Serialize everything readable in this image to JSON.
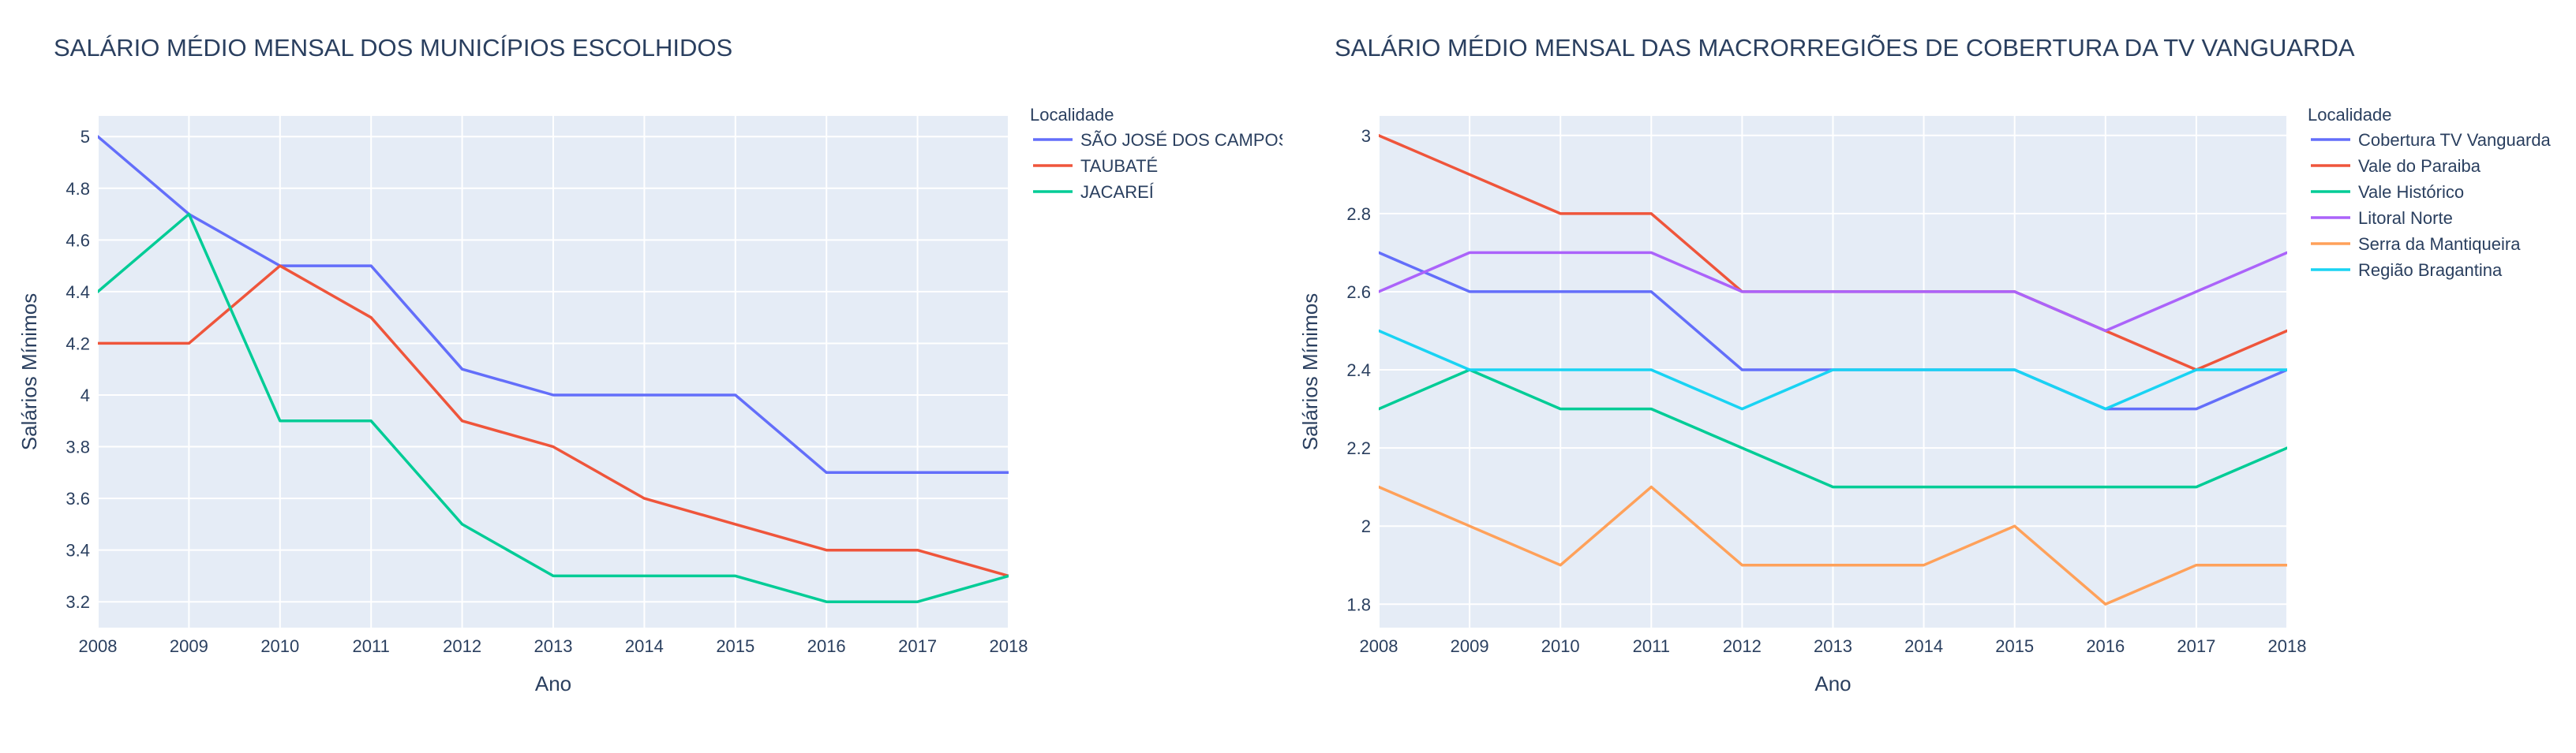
{
  "chart_data": [
    {
      "type": "line",
      "title": "SALÁRIO MÉDIO MENSAL DOS MUNICÍPIOS ESCOLHIDOS",
      "xlabel": "Ano",
      "ylabel": "Salários Mínimos",
      "legend_title": "Localidade",
      "legend_position": "right",
      "grid": true,
      "plot_background": "#e5ecf6",
      "x": [
        2008,
        2009,
        2010,
        2011,
        2012,
        2013,
        2014,
        2015,
        2016,
        2017,
        2018
      ],
      "xlim": [
        2008,
        2018
      ],
      "ylim": [
        3.1,
        5.08
      ],
      "yticks": [
        3.2,
        3.4,
        3.6,
        3.8,
        4,
        4.2,
        4.4,
        4.6,
        4.8,
        5
      ],
      "ytick_labels": [
        "3.2",
        "3.4",
        "3.6",
        "3.8",
        "4",
        "4.2",
        "4.4",
        "4.6",
        "4.8",
        "5"
      ],
      "series": [
        {
          "name": "SÃO JOSÉ DOS CAMPOS",
          "color": "#636efa",
          "values": [
            5.0,
            4.7,
            4.5,
            4.5,
            4.1,
            4.0,
            4.0,
            4.0,
            3.7,
            3.7,
            3.7
          ]
        },
        {
          "name": "TAUBATÉ",
          "color": "#ef553b",
          "values": [
            4.2,
            4.2,
            4.5,
            4.3,
            3.9,
            3.8,
            3.6,
            3.5,
            3.4,
            3.4,
            3.3
          ]
        },
        {
          "name": "JACAREÍ",
          "color": "#00cc96",
          "values": [
            4.4,
            4.7,
            3.9,
            3.9,
            3.5,
            3.3,
            3.3,
            3.3,
            3.2,
            3.2,
            3.3
          ]
        }
      ]
    },
    {
      "type": "line",
      "title": "SALÁRIO MÉDIO MENSAL DAS MACRORREGIÕES DE COBERTURA DA TV VANGUARDA",
      "xlabel": "Ano",
      "ylabel": "Salários Mínimos",
      "legend_title": "Localidade",
      "legend_position": "right",
      "grid": true,
      "plot_background": "#e5ecf6",
      "x": [
        2008,
        2009,
        2010,
        2011,
        2012,
        2013,
        2014,
        2015,
        2016,
        2017,
        2018
      ],
      "xlim": [
        2008,
        2018
      ],
      "ylim": [
        1.74,
        3.05
      ],
      "yticks": [
        1.8,
        2,
        2.2,
        2.4,
        2.6,
        2.8,
        3
      ],
      "ytick_labels": [
        "1.8",
        "2",
        "2.2",
        "2.4",
        "2.6",
        "2.8",
        "3"
      ],
      "series": [
        {
          "name": "Cobertura TV Vanguarda",
          "color": "#636efa",
          "values": [
            2.7,
            2.6,
            2.6,
            2.6,
            2.4,
            2.4,
            2.4,
            2.4,
            2.3,
            2.3,
            2.4
          ]
        },
        {
          "name": "Vale do Paraiba",
          "color": "#ef553b",
          "values": [
            3.0,
            2.9,
            2.8,
            2.8,
            2.6,
            2.6,
            2.6,
            2.6,
            2.5,
            2.4,
            2.5
          ]
        },
        {
          "name": "Vale Histórico",
          "color": "#00cc96",
          "values": [
            2.3,
            2.4,
            2.3,
            2.3,
            2.2,
            2.1,
            2.1,
            2.1,
            2.1,
            2.1,
            2.2
          ]
        },
        {
          "name": "Litoral Norte",
          "color": "#ab63fa",
          "values": [
            2.6,
            2.7,
            2.7,
            2.7,
            2.6,
            2.6,
            2.6,
            2.6,
            2.5,
            2.6,
            2.7
          ]
        },
        {
          "name": "Serra da Mantiqueira",
          "color": "#ffa15a",
          "values": [
            2.1,
            2.0,
            1.9,
            2.1,
            1.9,
            1.9,
            1.9,
            2.0,
            1.8,
            1.9,
            1.9
          ]
        },
        {
          "name": "Região Bragantina",
          "color": "#19d3f3",
          "values": [
            2.5,
            2.4,
            2.4,
            2.4,
            2.3,
            2.4,
            2.4,
            2.4,
            2.3,
            2.4,
            2.4
          ]
        }
      ]
    }
  ]
}
